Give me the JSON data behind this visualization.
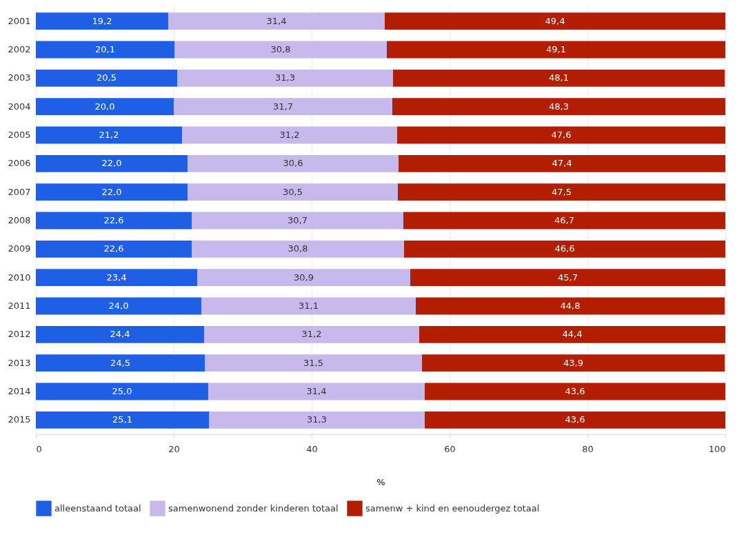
{
  "chart_data": {
    "type": "bar",
    "orientation": "horizontal",
    "stacked": true,
    "xlabel": "%",
    "categories": [
      "2001",
      "2002",
      "2003",
      "2004",
      "2005",
      "2006",
      "2007",
      "2008",
      "2009",
      "2010",
      "2011",
      "2012",
      "2013",
      "2014",
      "2015"
    ],
    "series": [
      {
        "name": "alleenstaand totaal",
        "color": "#1f5fe6",
        "values": [
          19.2,
          20.1,
          20.5,
          20.0,
          21.2,
          22.0,
          22.0,
          22.6,
          22.6,
          23.4,
          24.0,
          24.4,
          24.5,
          25.0,
          25.1
        ],
        "value_labels": [
          "19,2",
          "20,1",
          "20,5",
          "20,0",
          "21,2",
          "22,0",
          "22,0",
          "22,6",
          "22,6",
          "23,4",
          "24,0",
          "24,4",
          "24,5",
          "25,0",
          "25,1"
        ]
      },
      {
        "name": "samenwonend zonder kinderen totaal",
        "color": "#c8b9ec",
        "values": [
          31.4,
          30.8,
          31.3,
          31.7,
          31.2,
          30.6,
          30.5,
          30.7,
          30.8,
          30.9,
          31.1,
          31.2,
          31.5,
          31.4,
          31.3
        ],
        "value_labels": [
          "31,4",
          "30,8",
          "31,3",
          "31,7",
          "31,2",
          "30,6",
          "30,5",
          "30,7",
          "30,8",
          "30,9",
          "31,1",
          "31,2",
          "31,5",
          "31,4",
          "31,3"
        ]
      },
      {
        "name": "samenw + kind en eenoudergez totaal",
        "color": "#b31e02",
        "values": [
          49.4,
          49.1,
          48.1,
          48.3,
          47.6,
          47.4,
          47.5,
          46.7,
          46.6,
          45.7,
          44.8,
          44.4,
          43.9,
          43.6,
          43.6
        ],
        "value_labels": [
          "49,4",
          "49,1",
          "48,1",
          "48,3",
          "47,6",
          "47,4",
          "47,5",
          "46,7",
          "46,6",
          "45,7",
          "44,8",
          "44,4",
          "43,9",
          "43,6",
          "43,6"
        ]
      }
    ],
    "xlim": [
      0,
      100
    ],
    "xticks": [
      0,
      20,
      40,
      60,
      80,
      100
    ],
    "grid": "x",
    "legend": "bottom left"
  }
}
